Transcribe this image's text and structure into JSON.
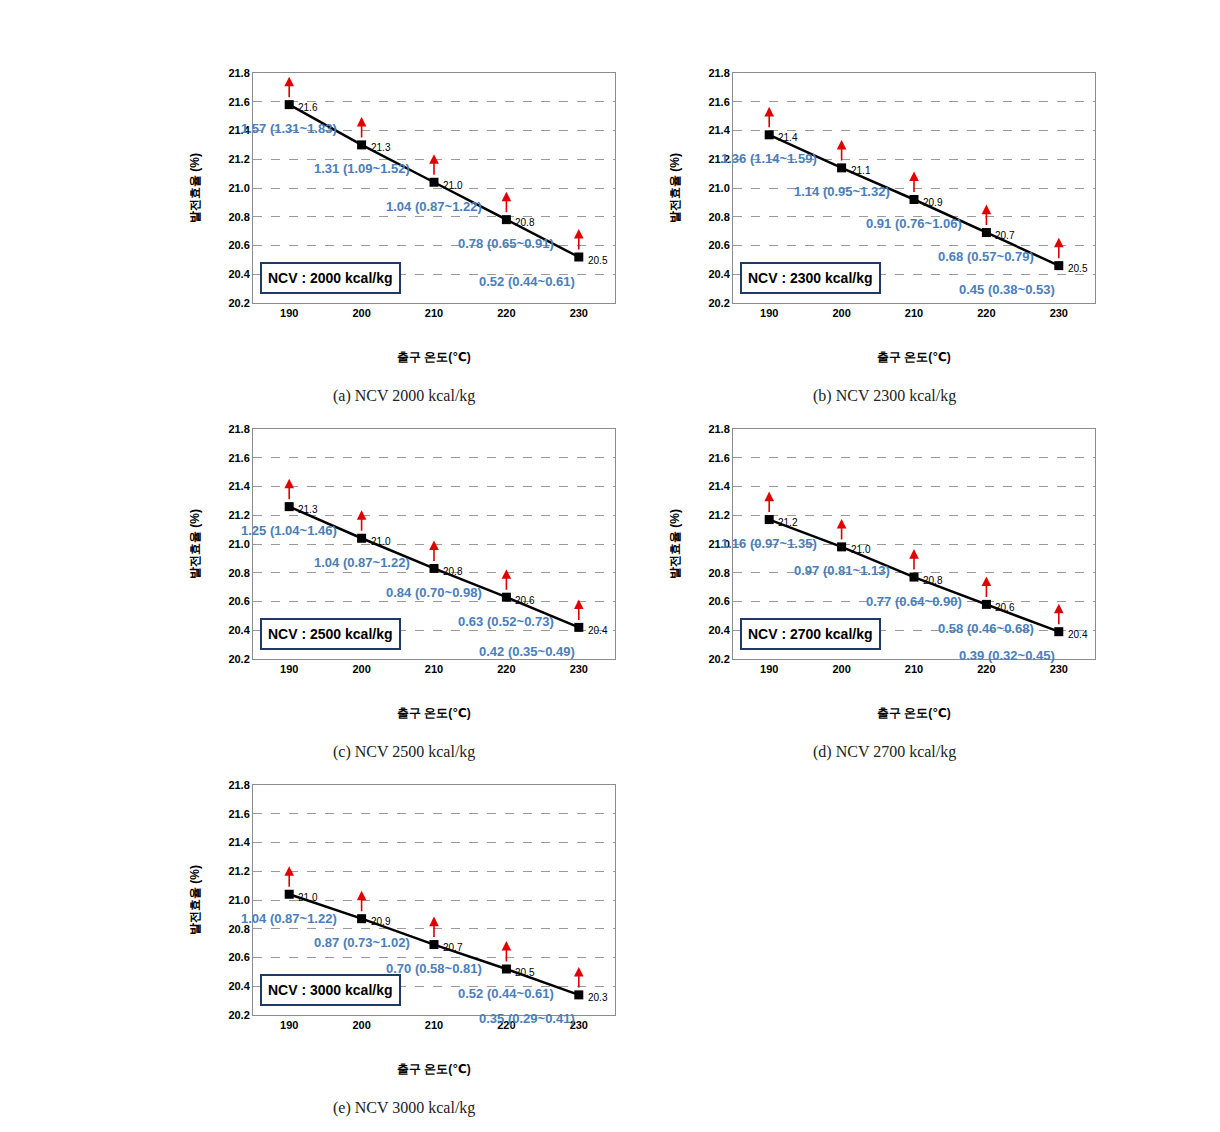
{
  "chart_data": [
    {
      "type": "line",
      "title": "(a) NCV 2000 kcal/kg",
      "box_text": "NCV : 2000 kcal/kg",
      "x_label": "출구 온도(℃)",
      "y_label": "발전효율 (%)",
      "x": [
        190,
        200,
        210,
        220,
        230
      ],
      "values": [
        21.58,
        21.3,
        21.04,
        20.78,
        20.52
      ],
      "value_labels": [
        "21.6",
        "21.3",
        "21.0",
        "20.8",
        "20.5"
      ],
      "annotations": [
        "1.57 (1.31~1.83)",
        "1.31 (1.09~1.52)",
        "1.04 (0.87~1.22)",
        "0.78 (0.65~0.91)",
        "0.52 (0.44~0.61)"
      ],
      "color": "#000000",
      "marker": "square",
      "data_labels": true,
      "grid": true,
      "xlim": [
        185,
        235
      ],
      "xticks": [
        190,
        200,
        210,
        220,
        230
      ],
      "ylim": [
        20.2,
        21.8
      ],
      "yticks": [
        20.2,
        20.4,
        20.6,
        20.8,
        {
          "value": 21,
          "label": "21.0"
        },
        21.2,
        21.4,
        21.6,
        21.8
      ]
    },
    {
      "type": "line",
      "title": "(b) NCV 2300 kcal/kg",
      "box_text": "NCV : 2300 kcal/kg",
      "x_label": "출구 온도(℃)",
      "y_label": "발전효율 (%)",
      "x": [
        190,
        200,
        210,
        220,
        230
      ],
      "values": [
        21.37,
        21.14,
        20.92,
        20.69,
        20.46
      ],
      "value_labels": [
        "21.4",
        "21.1",
        "20.9",
        "20.7",
        "20.5"
      ],
      "annotations": [
        "1.36 (1.14~1.59)",
        "1.14 (0.95~1.32)",
        "0.91 (0.76~1.06)",
        "0.68 (0.57~0.79)",
        "0.45 (0.38~0.53)"
      ],
      "color": "#000000",
      "marker": "square",
      "data_labels": true,
      "grid": true,
      "xlim": [
        185,
        235
      ],
      "xticks": [
        190,
        200,
        210,
        220,
        230
      ],
      "ylim": [
        20.2,
        21.8
      ],
      "yticks": [
        20.2,
        20.4,
        20.6,
        20.8,
        {
          "value": 21,
          "label": "21.0"
        },
        21.2,
        21.4,
        21.6,
        21.8
      ]
    },
    {
      "type": "line",
      "title": "(c) NCV 2500 kcal/kg",
      "box_text": "NCV : 2500 kcal/kg",
      "x_label": "출구 온도(℃)",
      "y_label": "발전효율 (%)",
      "x": [
        190,
        200,
        210,
        220,
        230
      ],
      "values": [
        21.26,
        21.04,
        20.83,
        20.63,
        20.42
      ],
      "value_labels": [
        "21.3",
        "21.0",
        "20.8",
        "20.6",
        "20.4"
      ],
      "annotations": [
        "1.25 (1.04~1.46)",
        "1.04 (0.87~1.22)",
        "0.84 (0.70~0.98)",
        "0.63 (0.52~0.73)",
        "0.42 (0.35~0.49)"
      ],
      "color": "#000000",
      "marker": "square",
      "data_labels": true,
      "grid": true,
      "xlim": [
        185,
        235
      ],
      "xticks": [
        190,
        200,
        210,
        220,
        230
      ],
      "ylim": [
        20.2,
        21.8
      ],
      "yticks": [
        20.2,
        20.4,
        20.6,
        20.8,
        {
          "value": 21,
          "label": "21.0"
        },
        21.2,
        21.4,
        21.6,
        21.8
      ]
    },
    {
      "type": "line",
      "title": "(d) NCV 2700 kcal/kg",
      "box_text": "NCV : 2700 kcal/kg",
      "x_label": "출구 온도(℃)",
      "y_label": "발전효율 (%)",
      "x": [
        190,
        200,
        210,
        220,
        230
      ],
      "values": [
        21.17,
        20.98,
        20.77,
        20.58,
        20.39
      ],
      "value_labels": [
        "21.2",
        "21.0",
        "20.8",
        "20.6",
        "20.4"
      ],
      "annotations": [
        "1.16 (0.97~1.35)",
        "0.97 (0.81~1.13)",
        "0.77 (0.64~0.90)",
        "0.58 (0.46~0.68)",
        "0.39 (0.32~0.45)"
      ],
      "color": "#000000",
      "marker": "square",
      "data_labels": true,
      "grid": true,
      "xlim": [
        185,
        235
      ],
      "xticks": [
        190,
        200,
        210,
        220,
        230
      ],
      "ylim": [
        20.2,
        21.8
      ],
      "yticks": [
        20.2,
        20.4,
        20.6,
        20.8,
        {
          "value": 21,
          "label": "21.0"
        },
        21.2,
        21.4,
        21.6,
        21.8
      ]
    },
    {
      "type": "line",
      "title": "(e) NCV 3000 kcal/kg",
      "box_text": "NCV : 3000 kcal/kg",
      "x_label": "출구 온도(℃)",
      "y_label": "발전효율 (%)",
      "x": [
        190,
        200,
        210,
        220,
        230
      ],
      "values": [
        21.04,
        20.87,
        20.69,
        20.52,
        20.34
      ],
      "value_labels": [
        "21.0",
        "20.9",
        "20.7",
        "20.5",
        "20.3"
      ],
      "annotations": [
        "1.04 (0.87~1.22)",
        "0.87 (0.73~1.02)",
        "0.70 (0.58~0.81)",
        "0.52 (0.44~0.61)",
        "0.35 (0.29~0.41)"
      ],
      "color": "#000000",
      "marker": "square",
      "data_labels": true,
      "grid": true,
      "xlim": [
        185,
        235
      ],
      "xticks": [
        190,
        200,
        210,
        220,
        230
      ],
      "ylim": [
        20.2,
        21.8
      ],
      "yticks": [
        20.2,
        20.4,
        20.6,
        20.8,
        {
          "value": 21,
          "label": "21.0"
        },
        21.2,
        21.4,
        21.6,
        21.8
      ]
    }
  ]
}
